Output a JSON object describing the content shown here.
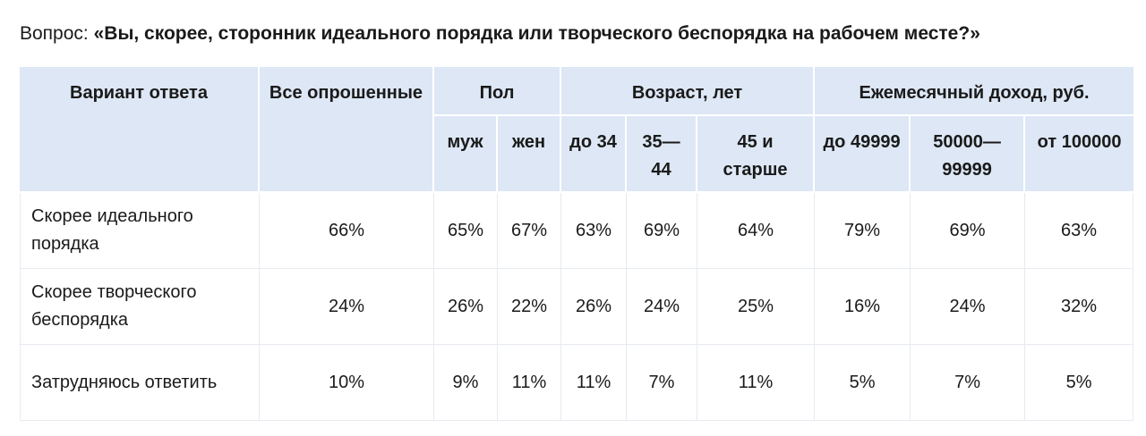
{
  "question": {
    "label": "Вопрос:",
    "text": "«Вы, скорее, сторонник идеального порядка или творческого беспорядка на рабочем месте?»"
  },
  "table": {
    "header_top": [
      "Вариант ответа",
      "Все опрошенные",
      "Пол",
      "Возраст, лет",
      "Ежемесячный доход, руб."
    ],
    "header_sub": [
      "муж",
      "жен",
      "до 34",
      "35—44",
      "45 и старше",
      "до 49999",
      "50000—99999",
      "от 100000"
    ],
    "rows": [
      [
        "Скорее идеального порядка",
        "66%",
        "65%",
        "67%",
        "63%",
        "69%",
        "64%",
        "79%",
        "69%",
        "63%"
      ],
      [
        "Скорее творческого беспорядка",
        "24%",
        "26%",
        "22%",
        "26%",
        "24%",
        "25%",
        "16%",
        "24%",
        "32%"
      ],
      [
        "Затрудняюсь ответить",
        "10%",
        "9%",
        "11%",
        "11%",
        "7%",
        "11%",
        "5%",
        "7%",
        "5%"
      ]
    ]
  }
}
